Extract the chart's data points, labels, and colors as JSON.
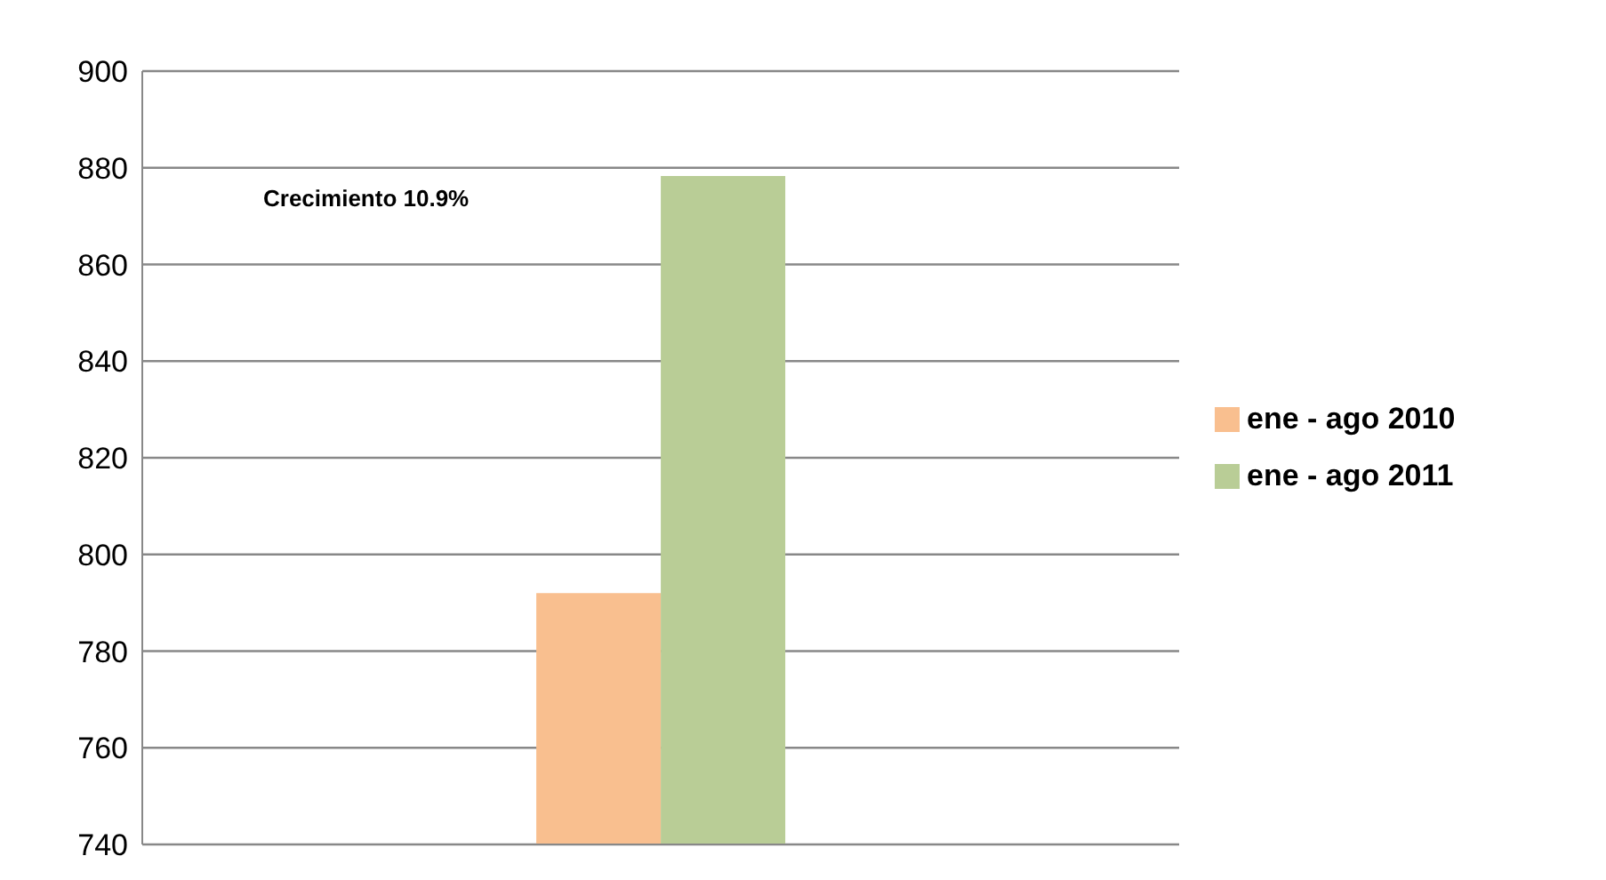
{
  "chart_data": {
    "type": "bar",
    "categories": [
      null
    ],
    "series": [
      {
        "name": "ene - ago 2010",
        "color": "#f9bf8f",
        "values": [
          792
        ]
      },
      {
        "name": "ene - ago 2011",
        "color": "#b9cd96",
        "values": [
          878.3
        ]
      }
    ],
    "ylim": [
      740,
      900
    ],
    "yticks": [
      740,
      760,
      780,
      800,
      820,
      840,
      860,
      880,
      900
    ],
    "grid": "y",
    "legend": "right",
    "annotations": [
      "Crecimiento 10.9%"
    ]
  }
}
